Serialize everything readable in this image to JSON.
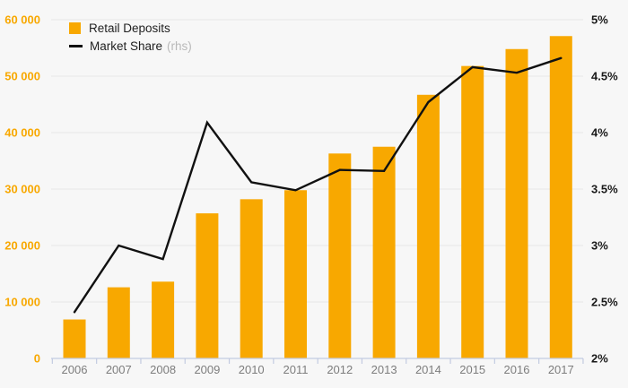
{
  "legend": {
    "items": [
      {
        "swatch": "bar",
        "label": "Retail Deposits",
        "suffix": ""
      },
      {
        "swatch": "line",
        "label": "Market Share",
        "suffix": "(rhs)"
      }
    ]
  },
  "chart_data": {
    "type": "combo",
    "categories": [
      "2006",
      "2007",
      "2008",
      "2009",
      "2010",
      "2011",
      "2012",
      "2013",
      "2014",
      "2015",
      "2016",
      "2017"
    ],
    "series": [
      {
        "name": "Retail Deposits",
        "type": "bar",
        "axis": "left",
        "color": "#F8A800",
        "values": [
          6900,
          12600,
          13600,
          25700,
          28200,
          29800,
          36300,
          37500,
          46700,
          51800,
          54800,
          57100
        ]
      },
      {
        "name": "Market Share (rhs)",
        "type": "line",
        "axis": "right",
        "color": "#111111",
        "values": [
          2.41,
          3.0,
          2.88,
          4.09,
          3.56,
          3.49,
          3.67,
          3.66,
          4.27,
          4.58,
          4.53,
          4.66
        ]
      }
    ],
    "left_axis": {
      "min": 0,
      "max": 60000,
      "step": 10000,
      "tick_labels": [
        "0",
        "10 000",
        "20 000",
        "30 000",
        "40 000",
        "50 000",
        "60 000"
      ]
    },
    "right_axis": {
      "min": 2,
      "max": 5,
      "step": 0.5,
      "tick_labels": [
        "2%",
        "2.5%",
        "3%",
        "3.5%",
        "4%",
        "4.5%",
        "5%"
      ]
    },
    "grid": true,
    "legend_position": "top-left",
    "title": "",
    "xlabel": "",
    "ylabel": ""
  },
  "colors": {
    "background": "#f7f7f7",
    "bar": "#F8A800",
    "line": "#111111",
    "gridline": "#e7e7e7",
    "axis_line": "#c3cbe1",
    "left_axis_label": "#F8A800",
    "right_axis_label": "#1a1a1a",
    "x_axis_label": "#7d7d7d",
    "legend_text": "#1f1f1f",
    "legend_muted": "#b9b9b9"
  }
}
